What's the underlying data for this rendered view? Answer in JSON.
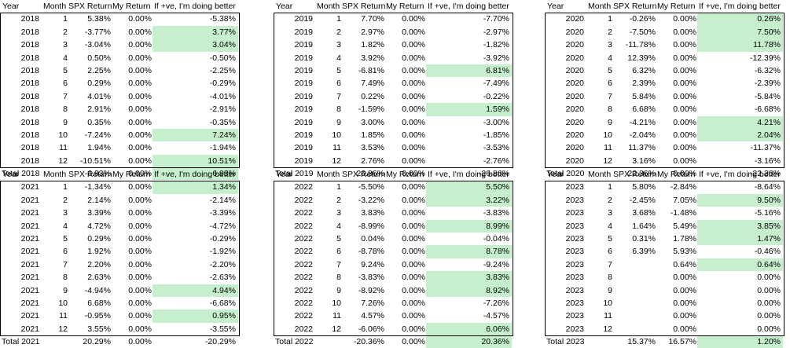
{
  "headers": [
    "Year",
    "Month",
    "SPX Return",
    "My Return",
    "If +ve, I'm doing better"
  ],
  "colors": {
    "highlight": "#c6efce",
    "border": "#000000"
  },
  "tables": [
    {
      "rows": [
        [
          "2018",
          "1",
          "5.38%",
          "0.00%",
          "-5.38%"
        ],
        [
          "2018",
          "2",
          "-3.77%",
          "0.00%",
          "3.77%"
        ],
        [
          "2018",
          "3",
          "-3.04%",
          "0.00%",
          "3.04%"
        ],
        [
          "2018",
          "4",
          "0.50%",
          "0.00%",
          "-0.50%"
        ],
        [
          "2018",
          "5",
          "2.25%",
          "0.00%",
          "-2.25%"
        ],
        [
          "2018",
          "6",
          "0.29%",
          "0.00%",
          "-0.29%"
        ],
        [
          "2018",
          "7",
          "4.01%",
          "0.00%",
          "-4.01%"
        ],
        [
          "2018",
          "8",
          "2.91%",
          "0.00%",
          "-2.91%"
        ],
        [
          "2018",
          "9",
          "0.35%",
          "0.00%",
          "-0.35%"
        ],
        [
          "2018",
          "10",
          "-7.24%",
          "0.00%",
          "7.24%"
        ],
        [
          "2018",
          "11",
          "1.94%",
          "0.00%",
          "-1.94%"
        ],
        [
          "2018",
          "12",
          "-10.51%",
          "0.00%",
          "10.51%"
        ]
      ],
      "total": [
        "Total 2018",
        "",
        "-6.93%",
        "0.00%",
        "6.93%"
      ]
    },
    {
      "rows": [
        [
          "2019",
          "1",
          "7.70%",
          "0.00%",
          "-7.70%"
        ],
        [
          "2019",
          "2",
          "2.97%",
          "0.00%",
          "-2.97%"
        ],
        [
          "2019",
          "3",
          "1.82%",
          "0.00%",
          "-1.82%"
        ],
        [
          "2019",
          "4",
          "3.92%",
          "0.00%",
          "-3.92%"
        ],
        [
          "2019",
          "5",
          "-6.81%",
          "0.00%",
          "6.81%"
        ],
        [
          "2019",
          "6",
          "7.49%",
          "0.00%",
          "-7.49%"
        ],
        [
          "2019",
          "7",
          "0.22%",
          "0.00%",
          "-0.22%"
        ],
        [
          "2019",
          "8",
          "-1.59%",
          "0.00%",
          "1.59%"
        ],
        [
          "2019",
          "9",
          "3.00%",
          "0.00%",
          "-3.00%"
        ],
        [
          "2019",
          "10",
          "1.85%",
          "0.00%",
          "-1.85%"
        ],
        [
          "2019",
          "11",
          "3.53%",
          "0.00%",
          "-3.53%"
        ],
        [
          "2019",
          "12",
          "2.76%",
          "0.00%",
          "-2.76%"
        ]
      ],
      "total": [
        "Total 2019",
        "",
        "26.86%",
        "0.00%",
        "-26.86%"
      ]
    },
    {
      "rows": [
        [
          "2020",
          "1",
          "-0.26%",
          "0.00%",
          "0.26%"
        ],
        [
          "2020",
          "2",
          "-7.50%",
          "0.00%",
          "7.50%"
        ],
        [
          "2020",
          "3",
          "-11.78%",
          "0.00%",
          "11.78%"
        ],
        [
          "2020",
          "4",
          "12.39%",
          "0.00%",
          "-12.39%"
        ],
        [
          "2020",
          "5",
          "6.32%",
          "0.00%",
          "-6.32%"
        ],
        [
          "2020",
          "6",
          "2.39%",
          "0.00%",
          "-2.39%"
        ],
        [
          "2020",
          "7",
          "5.84%",
          "0.00%",
          "-5.84%"
        ],
        [
          "2020",
          "8",
          "6.68%",
          "0.00%",
          "-6.68%"
        ],
        [
          "2020",
          "9",
          "-4.21%",
          "0.00%",
          "4.21%"
        ],
        [
          "2020",
          "10",
          "-2.04%",
          "0.00%",
          "2.04%"
        ],
        [
          "2020",
          "11",
          "11.37%",
          "0.00%",
          "-11.37%"
        ],
        [
          "2020",
          "12",
          "3.16%",
          "0.00%",
          "-3.16%"
        ]
      ],
      "total": [
        "Total 2020",
        "",
        "22.36%",
        "0.00%",
        "-22.36%"
      ]
    },
    {
      "rows": [
        [
          "2021",
          "1",
          "-1.34%",
          "0.00%",
          "1.34%"
        ],
        [
          "2021",
          "2",
          "2.14%",
          "0.00%",
          "-2.14%"
        ],
        [
          "2021",
          "3",
          "3.39%",
          "0.00%",
          "-3.39%"
        ],
        [
          "2021",
          "4",
          "4.72%",
          "0.00%",
          "-4.72%"
        ],
        [
          "2021",
          "5",
          "0.29%",
          "0.00%",
          "-0.29%"
        ],
        [
          "2021",
          "6",
          "1.92%",
          "0.00%",
          "-1.92%"
        ],
        [
          "2021",
          "7",
          "2.20%",
          "0.00%",
          "-2.20%"
        ],
        [
          "2021",
          "8",
          "2.63%",
          "0.00%",
          "-2.63%"
        ],
        [
          "2021",
          "9",
          "-4.94%",
          "0.00%",
          "4.94%"
        ],
        [
          "2021",
          "10",
          "6.68%",
          "0.00%",
          "-6.68%"
        ],
        [
          "2021",
          "11",
          "-0.95%",
          "0.00%",
          "0.95%"
        ],
        [
          "2021",
          "12",
          "3.55%",
          "0.00%",
          "-3.55%"
        ]
      ],
      "total": [
        "Total 2021",
        "",
        "20.29%",
        "0.00%",
        "-20.29%"
      ]
    },
    {
      "rows": [
        [
          "2022",
          "1",
          "-5.50%",
          "0.00%",
          "5.50%"
        ],
        [
          "2022",
          "2",
          "-3.22%",
          "0.00%",
          "3.22%"
        ],
        [
          "2022",
          "3",
          "3.83%",
          "0.00%",
          "-3.83%"
        ],
        [
          "2022",
          "4",
          "-8.99%",
          "0.00%",
          "8.99%"
        ],
        [
          "2022",
          "5",
          "0.04%",
          "0.00%",
          "-0.04%"
        ],
        [
          "2022",
          "6",
          "-8.78%",
          "0.00%",
          "8.78%"
        ],
        [
          "2022",
          "7",
          "9.24%",
          "0.00%",
          "-9.24%"
        ],
        [
          "2022",
          "8",
          "-3.83%",
          "0.00%",
          "3.83%"
        ],
        [
          "2022",
          "9",
          "-8.92%",
          "0.00%",
          "8.92%"
        ],
        [
          "2022",
          "10",
          "7.26%",
          "0.00%",
          "-7.26%"
        ],
        [
          "2022",
          "11",
          "4.57%",
          "0.00%",
          "-4.57%"
        ],
        [
          "2022",
          "12",
          "-6.06%",
          "0.00%",
          "6.06%"
        ]
      ],
      "total": [
        "Total 2022",
        "",
        "-20.36%",
        "0.00%",
        "20.36%"
      ]
    },
    {
      "rows": [
        [
          "2023",
          "1",
          "5.80%",
          "-2.84%",
          "-8.64%"
        ],
        [
          "2023",
          "2",
          "-2.45%",
          "7.05%",
          "9.50%"
        ],
        [
          "2023",
          "3",
          "3.68%",
          "-1.48%",
          "-5.16%"
        ],
        [
          "2023",
          "4",
          "1.64%",
          "5.49%",
          "3.85%"
        ],
        [
          "2023",
          "5",
          "0.31%",
          "1.78%",
          "1.47%"
        ],
        [
          "2023",
          "6",
          "6.39%",
          "5.93%",
          "-0.46%"
        ],
        [
          "2023",
          "7",
          "",
          "0.64%",
          "0.64%"
        ],
        [
          "2023",
          "8",
          "",
          "0.00%",
          "0.00%"
        ],
        [
          "2023",
          "9",
          "",
          "0.00%",
          "0.00%"
        ],
        [
          "2023",
          "10",
          "",
          "0.00%",
          "0.00%"
        ],
        [
          "2023",
          "11",
          "",
          "0.00%",
          "0.00%"
        ],
        [
          "2023",
          "12",
          "",
          "0.00%",
          "0.00%"
        ]
      ],
      "total": [
        "Total 2023",
        "",
        "15.37%",
        "16.57%",
        "1.20%"
      ]
    }
  ]
}
